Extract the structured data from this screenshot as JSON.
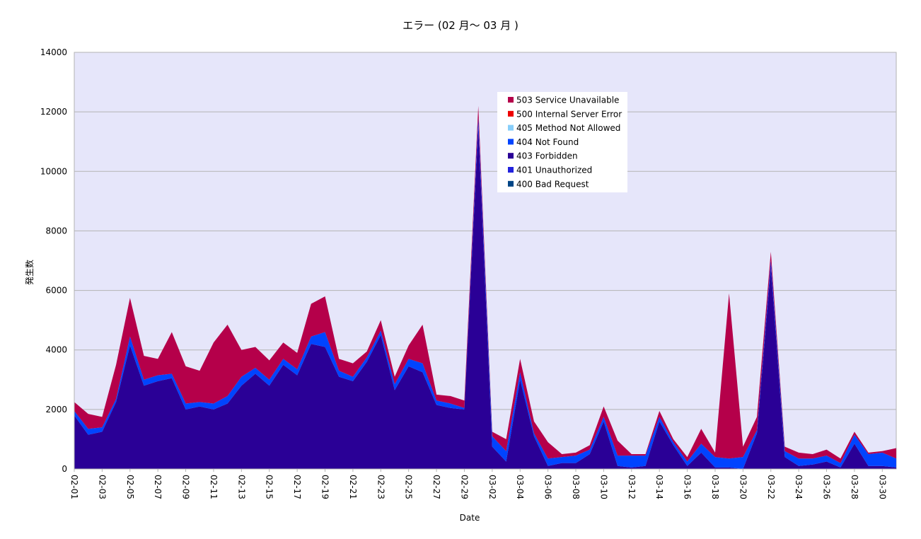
{
  "chart_data": {
    "type": "area",
    "stacked": true,
    "title": "エラー (02 月～ 03 月 )",
    "xlabel": "Date",
    "ylabel": "発生数",
    "ylim": [
      0,
      14000
    ],
    "yticks": [
      0,
      2000,
      4000,
      6000,
      8000,
      10000,
      12000,
      14000
    ],
    "grid": true,
    "legend_position": "top-center",
    "tick_labels": [
      "02-01",
      "02-03",
      "02-05",
      "02-07",
      "02-09",
      "02-11",
      "02-13",
      "02-15",
      "02-17",
      "02-19",
      "02-21",
      "02-23",
      "02-25",
      "02-27",
      "02-29",
      "03-02",
      "03-04",
      "03-06",
      "03-08",
      "03-10",
      "03-12",
      "03-14",
      "03-16",
      "03-18",
      "03-20",
      "03-22",
      "03-24",
      "03-26",
      "03-28",
      "03-30"
    ],
    "x": [
      "02-01",
      "02-02",
      "02-03",
      "02-04",
      "02-05",
      "02-06",
      "02-07",
      "02-08",
      "02-09",
      "02-10",
      "02-11",
      "02-12",
      "02-13",
      "02-14",
      "02-15",
      "02-16",
      "02-17",
      "02-18",
      "02-19",
      "02-20",
      "02-21",
      "02-22",
      "02-23",
      "02-24",
      "02-25",
      "02-26",
      "02-27",
      "02-28",
      "02-29",
      "03-01",
      "03-02",
      "03-03",
      "03-04",
      "03-05",
      "03-06",
      "03-07",
      "03-08",
      "03-09",
      "03-10",
      "03-11",
      "03-12",
      "03-13",
      "03-14",
      "03-15",
      "03-16",
      "03-17",
      "03-18",
      "03-19",
      "03-20",
      "03-21",
      "03-22",
      "03-23",
      "03-24",
      "03-25",
      "03-26",
      "03-27",
      "03-28",
      "03-29",
      "03-30",
      "03-31"
    ],
    "series": [
      {
        "name": "400 Bad Request",
        "color": "#004586",
        "values": [
          0,
          0,
          0,
          0,
          0,
          0,
          0,
          0,
          0,
          0,
          0,
          0,
          0,
          0,
          0,
          0,
          0,
          0,
          0,
          0,
          0,
          0,
          0,
          0,
          0,
          0,
          0,
          0,
          0,
          0,
          0,
          0,
          0,
          0,
          0,
          0,
          0,
          0,
          0,
          0,
          0,
          0,
          0,
          0,
          0,
          0,
          0,
          0,
          0,
          0,
          0,
          0,
          0,
          0,
          0,
          0,
          0,
          0,
          0,
          0
        ]
      },
      {
        "name": "401 Unauthorized",
        "color": "#2222dd",
        "values": [
          0,
          0,
          0,
          0,
          0,
          0,
          0,
          0,
          0,
          0,
          0,
          0,
          0,
          0,
          0,
          0,
          0,
          0,
          0,
          0,
          0,
          0,
          0,
          0,
          0,
          0,
          0,
          0,
          0,
          0,
          0,
          0,
          0,
          0,
          0,
          0,
          0,
          0,
          0,
          0,
          0,
          0,
          0,
          0,
          0,
          0,
          0,
          0,
          0,
          0,
          0,
          0,
          0,
          0,
          0,
          0,
          0,
          0,
          0,
          0
        ]
      },
      {
        "name": "403 Forbidden",
        "color": "#2a0096",
        "values": [
          1800,
          1150,
          1250,
          2250,
          4150,
          2800,
          2950,
          3050,
          2000,
          2100,
          2000,
          2200,
          2800,
          3200,
          2800,
          3500,
          3150,
          4200,
          4100,
          3100,
          2950,
          3600,
          4500,
          2650,
          3450,
          3250,
          2150,
          2050,
          2000,
          11500,
          750,
          250,
          3000,
          1100,
          100,
          200,
          200,
          500,
          1600,
          100,
          50,
          100,
          1600,
          800,
          100,
          550,
          50,
          50,
          0,
          1200,
          6800,
          400,
          100,
          150,
          250,
          50,
          850,
          100,
          100,
          50
        ]
      },
      {
        "name": "404 Not Found",
        "color": "#0044ff",
        "values": [
          150,
          200,
          150,
          100,
          300,
          200,
          200,
          150,
          200,
          150,
          200,
          250,
          300,
          200,
          200,
          200,
          200,
          250,
          500,
          200,
          150,
          150,
          150,
          200,
          250,
          300,
          150,
          150,
          50,
          300,
          350,
          350,
          250,
          100,
          250,
          200,
          250,
          150,
          150,
          350,
          400,
          350,
          150,
          100,
          150,
          300,
          350,
          300,
          400,
          100,
          200,
          200,
          250,
          200,
          200,
          150,
          300,
          400,
          450,
          300
        ]
      },
      {
        "name": "405 Method Not Allowed",
        "color": "#87cefa",
        "values": [
          0,
          0,
          0,
          0,
          0,
          0,
          0,
          0,
          0,
          0,
          0,
          0,
          0,
          0,
          0,
          0,
          0,
          0,
          0,
          0,
          0,
          0,
          0,
          0,
          0,
          0,
          0,
          0,
          0,
          0,
          0,
          0,
          0,
          0,
          0,
          0,
          0,
          0,
          0,
          0,
          0,
          0,
          0,
          0,
          0,
          0,
          0,
          0,
          0,
          0,
          0,
          0,
          0,
          0,
          0,
          0,
          0,
          0,
          0,
          0
        ]
      },
      {
        "name": "500 Internal Server Error",
        "color": "#ee0000",
        "values": [
          0,
          0,
          0,
          0,
          0,
          0,
          0,
          0,
          0,
          0,
          0,
          0,
          0,
          0,
          0,
          0,
          0,
          0,
          0,
          0,
          0,
          0,
          0,
          0,
          0,
          0,
          0,
          0,
          0,
          0,
          0,
          0,
          0,
          0,
          0,
          0,
          0,
          0,
          0,
          0,
          0,
          0,
          0,
          0,
          0,
          0,
          0,
          0,
          0,
          0,
          0,
          0,
          0,
          0,
          0,
          0,
          0,
          0,
          0,
          0
        ]
      },
      {
        "name": "503 Service Unavailable",
        "color": "#b5004a",
        "values": [
          300,
          500,
          350,
          1150,
          1300,
          800,
          550,
          1400,
          1250,
          1050,
          2050,
          2400,
          900,
          700,
          650,
          550,
          550,
          1100,
          1200,
          400,
          450,
          200,
          350,
          250,
          450,
          1300,
          200,
          250,
          250,
          400,
          150,
          400,
          450,
          400,
          550,
          100,
          100,
          150,
          350,
          500,
          50,
          50,
          200,
          100,
          150,
          500,
          150,
          5550,
          350,
          450,
          300,
          150,
          200,
          150,
          200,
          150,
          100,
          50,
          50,
          350
        ]
      }
    ]
  }
}
